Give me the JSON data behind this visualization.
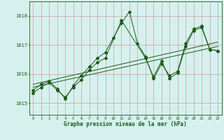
{
  "xlabel": "Graphe pression niveau de la mer (hPa)",
  "xlim": [
    -0.5,
    23.5
  ],
  "ylim": [
    1014.6,
    1018.5
  ],
  "yticks": [
    1015,
    1016,
    1017,
    1018
  ],
  "xticks": [
    0,
    1,
    2,
    3,
    4,
    5,
    6,
    7,
    8,
    9,
    10,
    11,
    12,
    13,
    14,
    15,
    16,
    17,
    18,
    19,
    20,
    21,
    22,
    23
  ],
  "bg_color": "#d6f0ee",
  "grid_color": "#c8a0a0",
  "line_color": "#1a5c1a",
  "series1_x": [
    0,
    1,
    2,
    3,
    4,
    5,
    6,
    7,
    8,
    9,
    10,
    11,
    12,
    13,
    14,
    15,
    16,
    17,
    18,
    19,
    20,
    21,
    22,
    23
  ],
  "series1_y": [
    1015.45,
    1015.65,
    1015.75,
    1015.5,
    1015.15,
    1015.6,
    1015.95,
    1016.25,
    1016.55,
    1016.75,
    1017.25,
    1017.75,
    1018.15,
    1017.05,
    1016.6,
    1015.85,
    1016.35,
    1015.95,
    1016.1,
    1017.05,
    1017.55,
    1017.65,
    1016.85,
    1016.8
  ],
  "series2_x": [
    0,
    1,
    2,
    3,
    4,
    5,
    6,
    7,
    8,
    9,
    11,
    14,
    15,
    16,
    17,
    18,
    19,
    20,
    21,
    22,
    23
  ],
  "series2_y": [
    1015.35,
    1015.55,
    1015.7,
    1015.45,
    1015.2,
    1015.55,
    1015.8,
    1016.15,
    1016.4,
    1016.55,
    1017.85,
    1016.55,
    1015.9,
    1016.45,
    1015.85,
    1016.05,
    1016.95,
    1017.5,
    1017.6,
    1016.85,
    1016.8
  ],
  "trend1_x": [
    0,
    23
  ],
  "trend1_y": [
    1015.55,
    1016.95
  ],
  "trend2_x": [
    0,
    23
  ],
  "trend2_y": [
    1015.65,
    1017.1
  ]
}
